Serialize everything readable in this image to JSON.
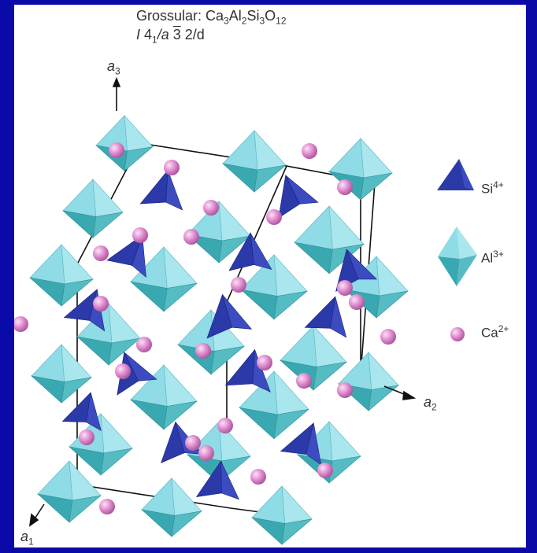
{
  "title": {
    "prefix": "Grossular: ",
    "formula": [
      {
        "t": "Ca",
        "s": "3"
      },
      {
        "t": "Al",
        "s": "2"
      },
      {
        "t": "Si",
        "s": "3"
      },
      {
        "t": "O",
        "s": "12"
      }
    ]
  },
  "space_group": {
    "a": "I",
    "b": "4",
    "b_sub": "1",
    "c": "/a",
    "d": "3",
    "e": "2/d"
  },
  "axes": [
    {
      "letter": "a",
      "sub": "3"
    },
    {
      "letter": "a",
      "sub": "2"
    },
    {
      "letter": "a",
      "sub": "1"
    }
  ],
  "legend": [
    {
      "ion": "Si",
      "charge": "4+",
      "icon": "tetrahedron-icon",
      "color": "#2b3aa8"
    },
    {
      "ion": "Al",
      "charge": "3+",
      "icon": "octahedron-icon",
      "color": "#7fd3e0"
    },
    {
      "ion": "Ca",
      "charge": "2+",
      "icon": "sphere-icon",
      "color": "#e08cd0"
    }
  ],
  "colors": {
    "background": "#0a0aa8",
    "octahedron_light": "#8fdbe6",
    "octahedron_dark": "#3aa8b0",
    "tetrahedron": "#2b3aa8",
    "tetrahedron_dark": "#1a2280",
    "sphere": "#e08cd0"
  }
}
